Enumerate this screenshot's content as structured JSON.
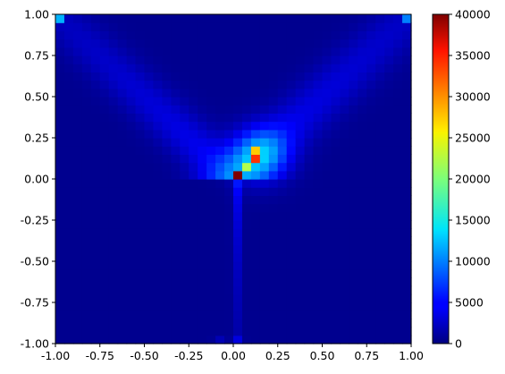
{
  "chart_data": {
    "type": "heatmap",
    "title": "",
    "xlabel": "",
    "ylabel": "",
    "xlim": [
      -1.0,
      1.0
    ],
    "ylim": [
      -1.0,
      1.0
    ],
    "bins": 40,
    "x_ticks": [
      "-1.00",
      "-0.75",
      "-0.50",
      "-0.25",
      "0.00",
      "0.25",
      "0.50",
      "0.75",
      "1.00"
    ],
    "y_ticks": [
      "-1.00",
      "-0.75",
      "-0.50",
      "-0.25",
      "0.00",
      "0.25",
      "0.50",
      "0.75",
      "1.00"
    ],
    "colorbar": {
      "colormap": "jet",
      "range": [
        0,
        40000
      ],
      "ticks": [
        "0",
        "5000",
        "10000",
        "15000",
        "20000",
        "25000",
        "30000",
        "35000",
        "40000"
      ]
    },
    "peaks": [
      {
        "x": 0.025,
        "y": 0.025,
        "count": 40000
      },
      {
        "x": 0.125,
        "y": 0.125,
        "count": 33000
      },
      {
        "x": 0.125,
        "y": 0.175,
        "count": 27000
      },
      {
        "x": 0.075,
        "y": 0.075,
        "count": 22000
      },
      {
        "x": -0.975,
        "y": 0.975,
        "count": 12000
      },
      {
        "x": 0.975,
        "y": 0.975,
        "count": 10000
      }
    ],
    "grid": false,
    "legend": "colorbar-right"
  }
}
